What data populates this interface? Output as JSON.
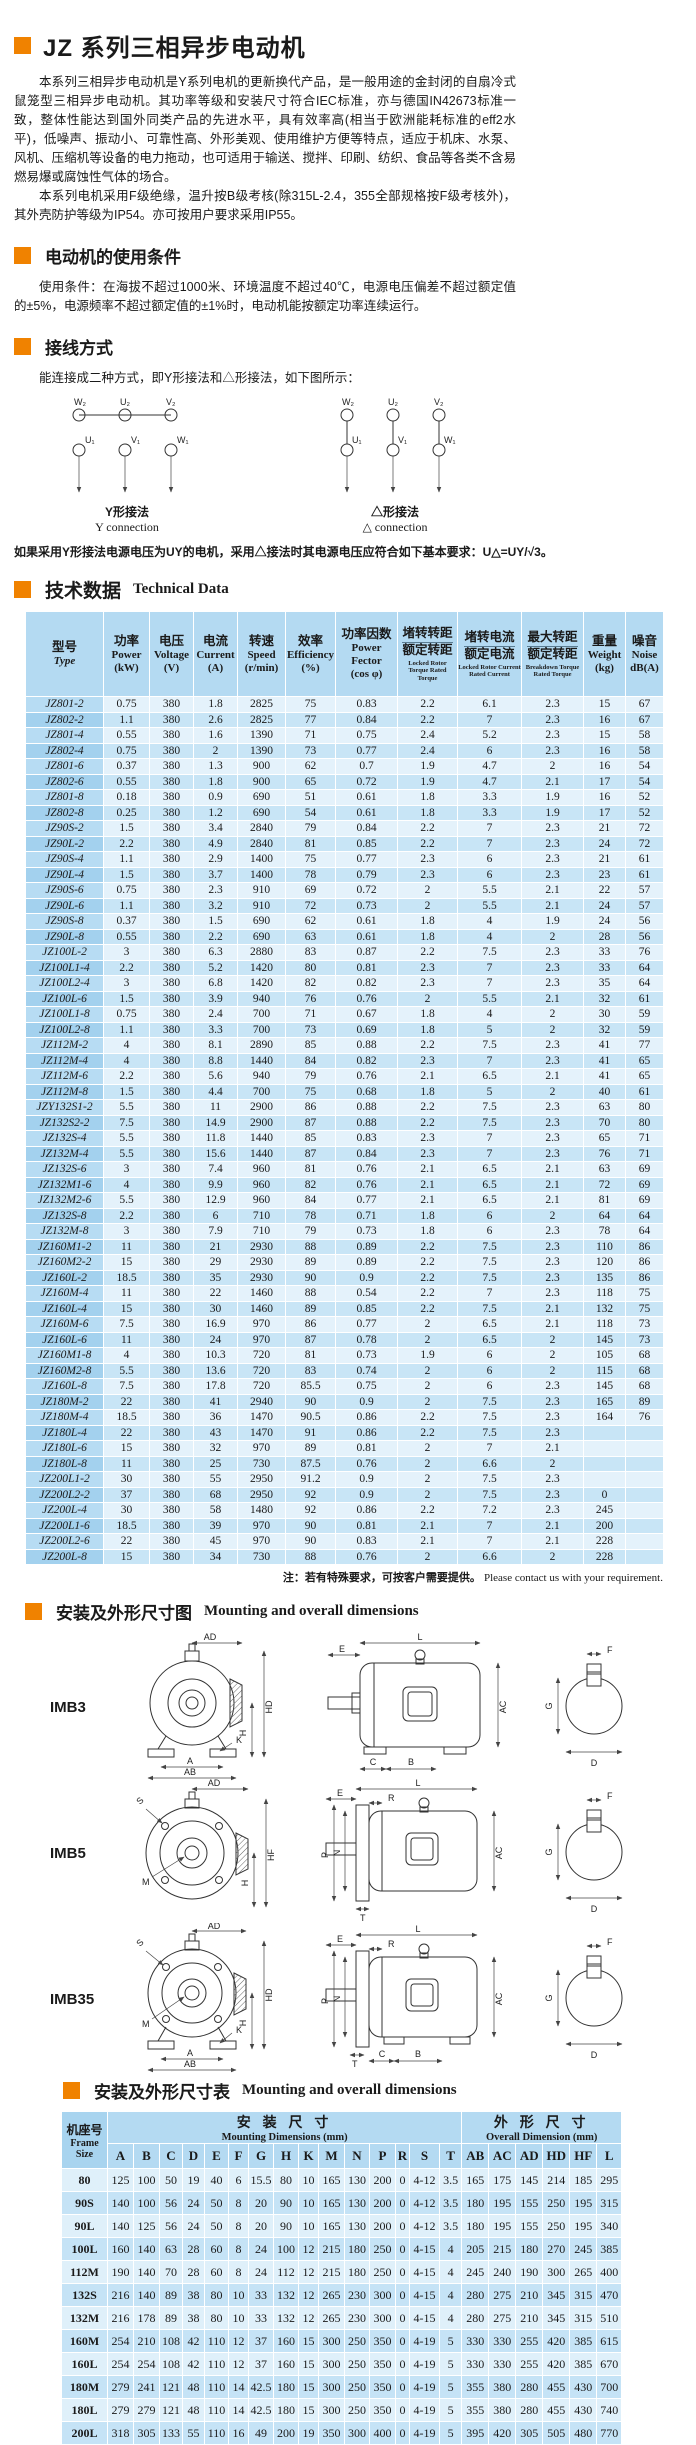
{
  "accent_color": "#f08200",
  "title": "JZ 系列三相异步电动机",
  "intro": {
    "p1": "本系列三相异步电动机是Y系列电机的更新换代产品，是一般用途的金封闭的自扇冷式鼠笼型三相异步电动机。其功率等级和安装尺寸符合IEC标准，亦与德国IN42673标准一致，整体性能达到国外同类产品的先进水平，具有效率高(相当于欧洲能耗标准的eff2水平)，低噪声、振动小、可靠性高、外形美观、使用维护方便等特点，适应于机床、水泵、风机、压缩机等设备的电力拖动，也可适用于输送、搅拌、印刷、纺织、食品等各类不含易燃易爆或腐蚀性气体的场合。",
    "p2": "本系列电机采用F级绝缘，温升按B级考核(除315L-2.4，355全部规格按F级考核外)，其外壳防护等级为IP54。亦可按用户要求采用IP55。"
  },
  "usage": {
    "heading": "电动机的使用条件",
    "body": "使用条件：在海拔不超过1000米、环境温度不超过40℃，电源电压偏差不超过额定值的±5%，电源频率不超过额定值的±1%时，电动机能按额定功率连续运行。"
  },
  "wiring": {
    "heading": "接线方式",
    "intro": "能连接成二种方式，即Y形接法和△形接法，如下图所示：",
    "top_terminals": [
      "W₂",
      "U₂",
      "V₂"
    ],
    "bottom_terminals": [
      "U₁",
      "V₁",
      "W₁"
    ],
    "y": {
      "caption_cn": "Y形接法",
      "caption_en": "Y connection"
    },
    "delta": {
      "caption_cn": "△形接法",
      "caption_en": "△ connection"
    },
    "note": "如果采用Y形接法电源电压为UY的电机，采用△接法时其电源电压应符合如下基本要求：U△=UY/√3。"
  },
  "tech": {
    "heading_cn": "技术数据",
    "heading_en": "Technical Data",
    "columns": {
      "type_cn": "型号",
      "type_en": "Type",
      "power_cn": "功率",
      "power_en": "Power",
      "power_unit": "(kW)",
      "voltage_cn": "电压",
      "voltage_en": "Voltage",
      "voltage_unit": "(V)",
      "current_cn": "电流",
      "current_en": "Current",
      "current_unit": "(A)",
      "speed_cn": "转速",
      "speed_en": "Speed",
      "speed_unit": "(r/min)",
      "eff_cn": "效率",
      "eff_en": "Efficiency",
      "eff_unit": "(%)",
      "pf_cn": "功率因数",
      "pf_en": "Power Fector",
      "pf_unit": "(cos φ)",
      "lrt_cn1": "堵转转距",
      "lrt_cn2": "额定转距",
      "lrt_en": "Locked Rotor Torque Rated Torque",
      "lrc_cn1": "堵转电流",
      "lrc_cn2": "额定电流",
      "lrc_en": "Locked Rotor Current Rated Current",
      "bt_cn1": "最大转距",
      "bt_cn2": "额定转距",
      "bt_en": "Breakdown Torque Rated Torque",
      "weight_cn": "重量",
      "weight_en": "Weight",
      "weight_unit": "(kg)",
      "noise_cn": "噪音",
      "noise_en": "Noise",
      "noise_unit": "dB(A)"
    },
    "rows": [
      [
        "JZ801-2",
        "0.75",
        "380",
        "1.8",
        "2825",
        "75",
        "0.83",
        "2.2",
        "6.1",
        "2.3",
        "15",
        "67"
      ],
      [
        "JZ802-2",
        "1.1",
        "380",
        "2.6",
        "2825",
        "77",
        "0.84",
        "2.2",
        "7",
        "2.3",
        "16",
        "67"
      ],
      [
        "JZ801-4",
        "0.55",
        "380",
        "1.6",
        "1390",
        "71",
        "0.75",
        "2.4",
        "5.2",
        "2.3",
        "15",
        "58"
      ],
      [
        "JZ802-4",
        "0.75",
        "380",
        "2",
        "1390",
        "73",
        "0.77",
        "2.4",
        "6",
        "2.3",
        "16",
        "58"
      ],
      [
        "JZ801-6",
        "0.37",
        "380",
        "1.3",
        "900",
        "62",
        "0.7",
        "1.9",
        "4.7",
        "2",
        "16",
        "54"
      ],
      [
        "JZ802-6",
        "0.55",
        "380",
        "1.8",
        "900",
        "65",
        "0.72",
        "1.9",
        "4.7",
        "2.1",
        "17",
        "54"
      ],
      [
        "JZ801-8",
        "0.18",
        "380",
        "0.9",
        "690",
        "51",
        "0.61",
        "1.8",
        "3.3",
        "1.9",
        "16",
        "52"
      ],
      [
        "JZ802-8",
        "0.25",
        "380",
        "1.2",
        "690",
        "54",
        "0.61",
        "1.8",
        "3.3",
        "1.9",
        "17",
        "52"
      ],
      [
        "JZ90S-2",
        "1.5",
        "380",
        "3.4",
        "2840",
        "79",
        "0.84",
        "2.2",
        "7",
        "2.3",
        "21",
        "72"
      ],
      [
        "JZ90L-2",
        "2.2",
        "380",
        "4.9",
        "2840",
        "81",
        "0.85",
        "2.2",
        "7",
        "2.3",
        "24",
        "72"
      ],
      [
        "JZ90S-4",
        "1.1",
        "380",
        "2.9",
        "1400",
        "75",
        "0.77",
        "2.3",
        "6",
        "2.3",
        "21",
        "61"
      ],
      [
        "JZ90L-4",
        "1.5",
        "380",
        "3.7",
        "1400",
        "78",
        "0.79",
        "2.3",
        "6",
        "2.3",
        "23",
        "61"
      ],
      [
        "JZ90S-6",
        "0.75",
        "380",
        "2.3",
        "910",
        "69",
        "0.72",
        "2",
        "5.5",
        "2.1",
        "22",
        "57"
      ],
      [
        "JZ90L-6",
        "1.1",
        "380",
        "3.2",
        "910",
        "72",
        "0.73",
        "2",
        "5.5",
        "2.1",
        "24",
        "57"
      ],
      [
        "JZ90S-8",
        "0.37",
        "380",
        "1.5",
        "690",
        "62",
        "0.61",
        "1.8",
        "4",
        "1.9",
        "24",
        "56"
      ],
      [
        "JZ90L-8",
        "0.55",
        "380",
        "2.2",
        "690",
        "63",
        "0.61",
        "1.8",
        "4",
        "2",
        "28",
        "56"
      ],
      [
        "JZ100L-2",
        "3",
        "380",
        "6.3",
        "2880",
        "83",
        "0.87",
        "2.2",
        "7.5",
        "2.3",
        "33",
        "76"
      ],
      [
        "JZ100L1-4",
        "2.2",
        "380",
        "5.2",
        "1420",
        "80",
        "0.81",
        "2.3",
        "7",
        "2.3",
        "33",
        "64"
      ],
      [
        "JZ100L2-4",
        "3",
        "380",
        "6.8",
        "1420",
        "82",
        "0.82",
        "2.3",
        "7",
        "2.3",
        "35",
        "64"
      ],
      [
        "JZ100L-6",
        "1.5",
        "380",
        "3.9",
        "940",
        "76",
        "0.76",
        "2",
        "5.5",
        "2.1",
        "32",
        "61"
      ],
      [
        "JZ100L1-8",
        "0.75",
        "380",
        "2.4",
        "700",
        "71",
        "0.67",
        "1.8",
        "4",
        "2",
        "30",
        "59"
      ],
      [
        "JZ100L2-8",
        "1.1",
        "380",
        "3.3",
        "700",
        "73",
        "0.69",
        "1.8",
        "5",
        "2",
        "32",
        "59"
      ],
      [
        "JZ112M-2",
        "4",
        "380",
        "8.1",
        "2890",
        "85",
        "0.88",
        "2.2",
        "7.5",
        "2.3",
        "41",
        "77"
      ],
      [
        "JZ112M-4",
        "4",
        "380",
        "8.8",
        "1440",
        "84",
        "0.82",
        "2.3",
        "7",
        "2.3",
        "41",
        "65"
      ],
      [
        "JZ112M-6",
        "2.2",
        "380",
        "5.6",
        "940",
        "79",
        "0.76",
        "2.1",
        "6.5",
        "2.1",
        "41",
        "65"
      ],
      [
        "JZ112M-8",
        "1.5",
        "380",
        "4.4",
        "700",
        "75",
        "0.68",
        "1.8",
        "5",
        "2",
        "40",
        "61"
      ],
      [
        "JZY132S1-2",
        "5.5",
        "380",
        "11",
        "2900",
        "86",
        "0.88",
        "2.2",
        "7.5",
        "2.3",
        "63",
        "80"
      ],
      [
        "JZ132S2-2",
        "7.5",
        "380",
        "14.9",
        "2900",
        "87",
        "0.88",
        "2.2",
        "7.5",
        "2.3",
        "70",
        "80"
      ],
      [
        "JZ132S-4",
        "5.5",
        "380",
        "11.8",
        "1440",
        "85",
        "0.83",
        "2.3",
        "7",
        "2.3",
        "65",
        "71"
      ],
      [
        "JZ132M-4",
        "5.5",
        "380",
        "15.6",
        "1440",
        "87",
        "0.84",
        "2.3",
        "7",
        "2.3",
        "76",
        "71"
      ],
      [
        "JZ132S-6",
        "3",
        "380",
        "7.4",
        "960",
        "81",
        "0.76",
        "2.1",
        "6.5",
        "2.1",
        "63",
        "69"
      ],
      [
        "JZ132M1-6",
        "4",
        "380",
        "9.9",
        "960",
        "82",
        "0.76",
        "2.1",
        "6.5",
        "2.1",
        "72",
        "69"
      ],
      [
        "JZ132M2-6",
        "5.5",
        "380",
        "12.9",
        "960",
        "84",
        "0.77",
        "2.1",
        "6.5",
        "2.1",
        "81",
        "69"
      ],
      [
        "JZ132S-8",
        "2.2",
        "380",
        "6",
        "710",
        "78",
        "0.71",
        "1.8",
        "6",
        "2",
        "64",
        "64"
      ],
      [
        "JZ132M-8",
        "3",
        "380",
        "7.9",
        "710",
        "79",
        "0.73",
        "1.8",
        "6",
        "2.3",
        "78",
        "64"
      ],
      [
        "JZ160M1-2",
        "11",
        "380",
        "21",
        "2930",
        "88",
        "0.89",
        "2.2",
        "7.5",
        "2.3",
        "110",
        "86"
      ],
      [
        "JZ160M2-2",
        "15",
        "380",
        "29",
        "2930",
        "89",
        "0.89",
        "2.2",
        "7.5",
        "2.3",
        "120",
        "86"
      ],
      [
        "JZ160L-2",
        "18.5",
        "380",
        "35",
        "2930",
        "90",
        "0.9",
        "2.2",
        "7.5",
        "2.3",
        "135",
        "86"
      ],
      [
        "JZ160M-4",
        "11",
        "380",
        "22",
        "1460",
        "88",
        "0.54",
        "2.2",
        "7",
        "2.3",
        "118",
        "75"
      ],
      [
        "JZ160L-4",
        "15",
        "380",
        "30",
        "1460",
        "89",
        "0.85",
        "2.2",
        "7.5",
        "2.1",
        "132",
        "75"
      ],
      [
        "JZ160M-6",
        "7.5",
        "380",
        "16.9",
        "970",
        "86",
        "0.77",
        "2",
        "6.5",
        "2.1",
        "118",
        "73"
      ],
      [
        "JZ160L-6",
        "11",
        "380",
        "24",
        "970",
        "87",
        "0.78",
        "2",
        "6.5",
        "2",
        "145",
        "73"
      ],
      [
        "JZ160M1-8",
        "4",
        "380",
        "10.3",
        "720",
        "81",
        "0.73",
        "1.9",
        "6",
        "2",
        "105",
        "68"
      ],
      [
        "JZ160M2-8",
        "5.5",
        "380",
        "13.6",
        "720",
        "83",
        "0.74",
        "2",
        "6",
        "2",
        "115",
        "68"
      ],
      [
        "JZ160L-8",
        "7.5",
        "380",
        "17.8",
        "720",
        "85.5",
        "0.75",
        "2",
        "6",
        "2.3",
        "145",
        "68"
      ],
      [
        "JZ180M-2",
        "22",
        "380",
        "41",
        "2940",
        "90",
        "0.9",
        "2",
        "7.5",
        "2.3",
        "165",
        "89"
      ],
      [
        "JZ180M-4",
        "18.5",
        "380",
        "36",
        "1470",
        "90.5",
        "0.86",
        "2.2",
        "7.5",
        "2.3",
        "164",
        "76"
      ],
      [
        "JZ180L-4",
        "22",
        "380",
        "43",
        "1470",
        "91",
        "0.86",
        "2.2",
        "7.5",
        "2.3",
        "",
        ""
      ],
      [
        "JZ180L-6",
        "15",
        "380",
        "32",
        "970",
        "89",
        "0.81",
        "2",
        "7",
        "2.1",
        "",
        ""
      ],
      [
        "JZ180L-8",
        "11",
        "380",
        "25",
        "730",
        "87.5",
        "0.76",
        "2",
        "6.6",
        "2",
        "",
        ""
      ],
      [
        "JZ200L1-2",
        "30",
        "380",
        "55",
        "2950",
        "91.2",
        "0.9",
        "2",
        "7.5",
        "2.3",
        "",
        ""
      ],
      [
        "JZ200L2-2",
        "37",
        "380",
        "68",
        "2950",
        "92",
        "0.9",
        "2",
        "7.5",
        "2.3",
        "0",
        ""
      ],
      [
        "JZ200L-4",
        "30",
        "380",
        "58",
        "1480",
        "92",
        "0.86",
        "2.2",
        "7.2",
        "2.3",
        "245",
        ""
      ],
      [
        "JZ200L1-6",
        "18.5",
        "380",
        "39",
        "970",
        "90",
        "0.81",
        "2.1",
        "7",
        "2.1",
        "200",
        ""
      ],
      [
        "JZ200L2-6",
        "22",
        "380",
        "45",
        "970",
        "90",
        "0.83",
        "2.1",
        "7",
        "2.1",
        "228",
        ""
      ],
      [
        "JZ200L-8",
        "15",
        "380",
        "34",
        "730",
        "88",
        "0.76",
        "2",
        "6.6",
        "2",
        "228",
        ""
      ]
    ],
    "note_cn": "注：若有特殊要求，可按客户需要提供。",
    "note_en": "Please contact us with your requirement."
  },
  "figures": {
    "heading_cn": "安装及外形尺寸图",
    "heading_en": "Mounting and overall dimensions",
    "imb3": {
      "label": "IMB3",
      "front": {
        "ad": "AD",
        "hd": "HD",
        "h": "H",
        "k": "K",
        "a": "A",
        "ab": "AB"
      },
      "side": {
        "l": "L",
        "e": "E",
        "ac": "AC",
        "c": "C",
        "b": "B"
      },
      "shaft": {
        "f": "F",
        "g": "G",
        "d": "D"
      }
    },
    "imb5": {
      "label": "IMB5",
      "front": {
        "ad": "AD",
        "s": "S",
        "m": "M",
        "hf": "HF",
        "h": "H"
      },
      "side": {
        "l": "L",
        "e": "E",
        "r": "R",
        "p": "P",
        "n": "N",
        "ac": "AC",
        "t": "T"
      },
      "shaft": {
        "f": "F",
        "g": "G",
        "d": "D"
      }
    },
    "imb35": {
      "label": "IMB35",
      "front": {
        "ad": "AD",
        "s": "S",
        "m": "M",
        "hd": "HD",
        "h": "H",
        "k": "K",
        "a": "A",
        "ab": "AB"
      },
      "side": {
        "l": "L",
        "e": "E",
        "r": "R",
        "p": "P",
        "n": "N",
        "ac": "AC",
        "t": "T",
        "c": "C",
        "b": "B"
      },
      "shaft": {
        "f": "F",
        "g": "G",
        "d": "D"
      }
    }
  },
  "mounting": {
    "heading_cn": "安装及外形尺寸表",
    "heading_en": "Mounting and overall dimensions",
    "frame_cn": "机座号",
    "frame_en": "Frame Size",
    "mount_cn": "安 装 尺 寸",
    "mount_en": "Mounting Dimensions (mm)",
    "overall_cn": "外 形 尺 寸",
    "overall_en": "Overall Dimension (mm)",
    "letters": [
      "A",
      "B",
      "C",
      "D",
      "E",
      "F",
      "G",
      "H",
      "K",
      "M",
      "N",
      "P",
      "R",
      "S",
      "T",
      "AB",
      "AC",
      "AD",
      "HD",
      "HF",
      "L"
    ],
    "rows": [
      [
        "80",
        "125",
        "100",
        "50",
        "19",
        "40",
        "6",
        "15.5",
        "80",
        "10",
        "165",
        "130",
        "200",
        "0",
        "4-12",
        "3.5",
        "165",
        "175",
        "145",
        "214",
        "185",
        "295"
      ],
      [
        "90S",
        "140",
        "100",
        "56",
        "24",
        "50",
        "8",
        "20",
        "90",
        "10",
        "165",
        "130",
        "200",
        "0",
        "4-12",
        "3.5",
        "180",
        "195",
        "155",
        "250",
        "195",
        "315"
      ],
      [
        "90L",
        "140",
        "125",
        "56",
        "24",
        "50",
        "8",
        "20",
        "90",
        "10",
        "165",
        "130",
        "200",
        "0",
        "4-12",
        "3.5",
        "180",
        "195",
        "155",
        "250",
        "195",
        "340"
      ],
      [
        "100L",
        "160",
        "140",
        "63",
        "28",
        "60",
        "8",
        "24",
        "100",
        "12",
        "215",
        "180",
        "250",
        "0",
        "4-15",
        "4",
        "205",
        "215",
        "180",
        "270",
        "245",
        "385"
      ],
      [
        "112M",
        "190",
        "140",
        "70",
        "28",
        "60",
        "8",
        "24",
        "112",
        "12",
        "215",
        "180",
        "250",
        "0",
        "4-15",
        "4",
        "245",
        "240",
        "190",
        "300",
        "265",
        "400"
      ],
      [
        "132S",
        "216",
        "140",
        "89",
        "38",
        "80",
        "10",
        "33",
        "132",
        "12",
        "265",
        "230",
        "300",
        "0",
        "4-15",
        "4",
        "280",
        "275",
        "210",
        "345",
        "315",
        "470"
      ],
      [
        "132M",
        "216",
        "178",
        "89",
        "38",
        "80",
        "10",
        "33",
        "132",
        "12",
        "265",
        "230",
        "300",
        "0",
        "4-15",
        "4",
        "280",
        "275",
        "210",
        "345",
        "315",
        "510"
      ],
      [
        "160M",
        "254",
        "210",
        "108",
        "42",
        "110",
        "12",
        "37",
        "160",
        "15",
        "300",
        "250",
        "350",
        "0",
        "4-19",
        "5",
        "330",
        "330",
        "255",
        "420",
        "385",
        "615"
      ],
      [
        "160L",
        "254",
        "254",
        "108",
        "42",
        "110",
        "12",
        "37",
        "160",
        "15",
        "300",
        "250",
        "350",
        "0",
        "4-19",
        "5",
        "330",
        "330",
        "255",
        "420",
        "385",
        "670"
      ],
      [
        "180M",
        "279",
        "241",
        "121",
        "48",
        "110",
        "14",
        "42.5",
        "180",
        "15",
        "300",
        "250",
        "350",
        "0",
        "4-19",
        "5",
        "355",
        "380",
        "280",
        "455",
        "430",
        "700"
      ],
      [
        "180L",
        "279",
        "279",
        "121",
        "48",
        "110",
        "14",
        "42.5",
        "180",
        "15",
        "300",
        "250",
        "350",
        "0",
        "4-19",
        "5",
        "355",
        "380",
        "280",
        "455",
        "430",
        "740"
      ],
      [
        "200L",
        "318",
        "305",
        "133",
        "55",
        "110",
        "16",
        "49",
        "200",
        "19",
        "350",
        "300",
        "400",
        "0",
        "4-19",
        "5",
        "395",
        "420",
        "305",
        "505",
        "480",
        "770"
      ]
    ]
  }
}
